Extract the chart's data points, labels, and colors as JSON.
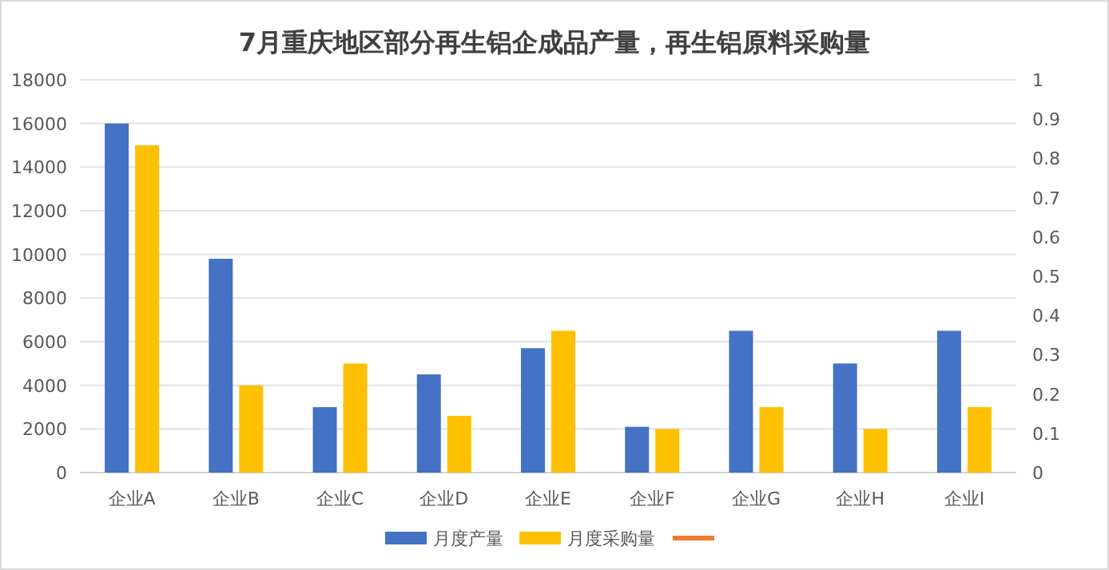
{
  "chart_data": {
    "type": "bar",
    "title": "7月重庆地区部分再生铝企成品产量，再生铝原料采购量",
    "categories": [
      "企业A",
      "企业B",
      "企业C",
      "企业D",
      "企业E",
      "企业F",
      "企业G",
      "企业H",
      "企业I"
    ],
    "series": [
      {
        "name": "月度产量",
        "color": "#4472c4",
        "values": [
          16000,
          9800,
          3000,
          4500,
          5700,
          2100,
          6500,
          5000,
          6500
        ]
      },
      {
        "name": "月度采购量",
        "color": "#ffc000",
        "values": [
          15000,
          4000,
          5000,
          2600,
          6500,
          2000,
          3000,
          2000,
          3000
        ]
      },
      {
        "type": "line",
        "color": "#ed7d31",
        "values": [
          null,
          null,
          null,
          null,
          null,
          null,
          null,
          null,
          null
        ]
      }
    ],
    "ylim": [
      0,
      18000
    ],
    "yticks": [
      0,
      2000,
      4000,
      6000,
      8000,
      10000,
      12000,
      14000,
      16000,
      18000
    ],
    "y2lim": [
      0,
      1
    ],
    "y2ticks": [
      0,
      0.1,
      0.2,
      0.3,
      0.4,
      0.5,
      0.6,
      0.7,
      0.8,
      0.9,
      1
    ],
    "grid": "y",
    "legend": "bottom"
  }
}
